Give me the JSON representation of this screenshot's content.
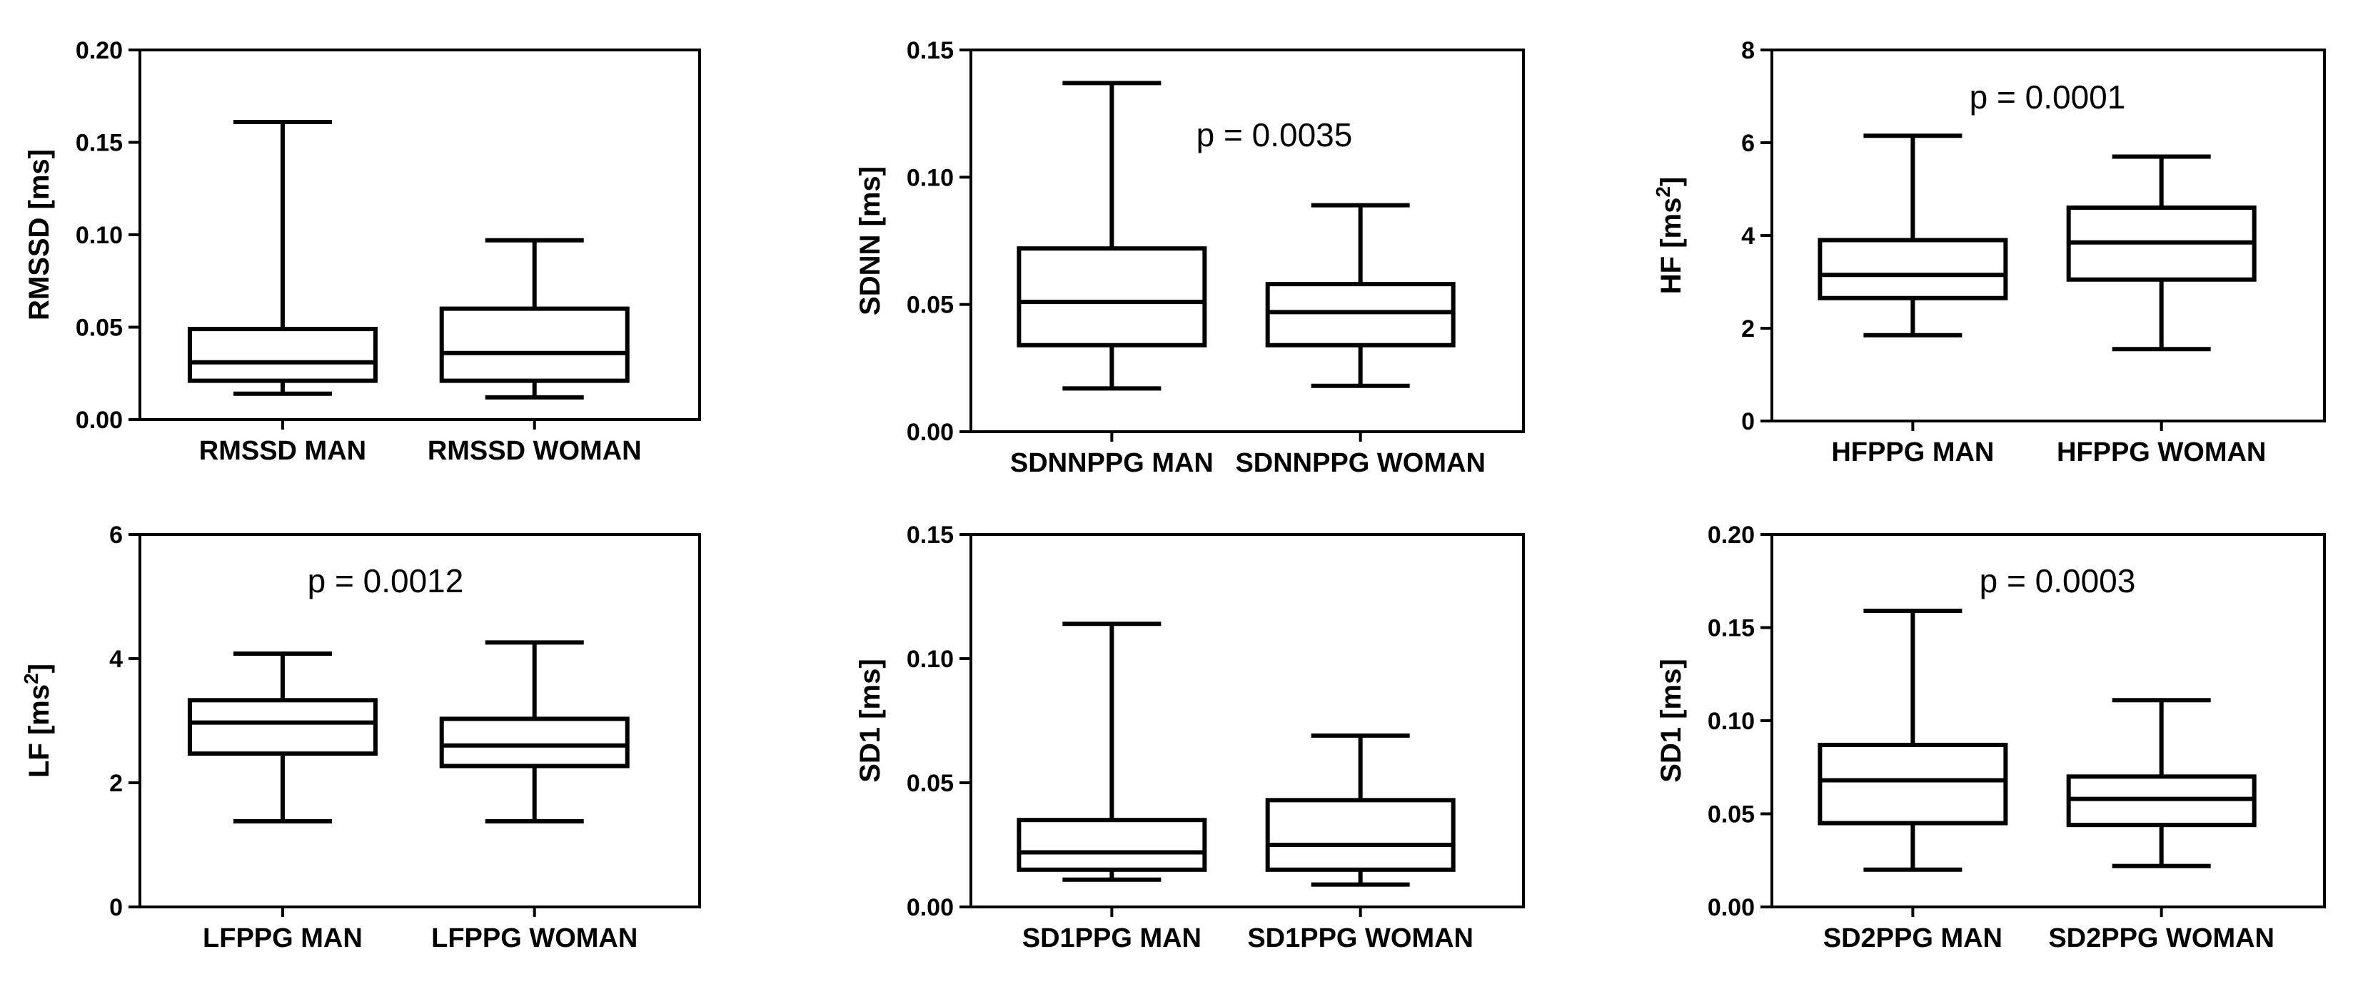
{
  "chart_data": [
    {
      "type": "boxplot",
      "ylabel": "RMSSD [ms]",
      "ylim": [
        0,
        0.2
      ],
      "yticks": [
        "0.00",
        "0.05",
        "0.10",
        "0.15",
        "0.20"
      ],
      "annotation": "",
      "boxes": [
        {
          "label": "RMSSD MAN",
          "min": 0.014,
          "q1": 0.021,
          "median": 0.031,
          "q3": 0.049,
          "max": 0.161
        },
        {
          "label": "RMSSD WOMAN",
          "min": 0.012,
          "q1": 0.021,
          "median": 0.036,
          "q3": 0.06,
          "max": 0.097
        }
      ]
    },
    {
      "type": "boxplot",
      "ylabel": "SDNN [ms]",
      "ylim": [
        0,
        0.15
      ],
      "yticks": [
        "0.00",
        "0.05",
        "0.10",
        "0.15"
      ],
      "annotation": "p = 0.0035",
      "boxes": [
        {
          "label": "SDNNPPG MAN",
          "min": 0.017,
          "q1": 0.034,
          "median": 0.051,
          "q3": 0.072,
          "max": 0.137
        },
        {
          "label": "SDNNPPG WOMAN",
          "min": 0.018,
          "q1": 0.034,
          "median": 0.047,
          "q3": 0.058,
          "max": 0.089
        }
      ]
    },
    {
      "type": "boxplot",
      "ylabel": "HF [ms²]",
      "ylim": [
        0,
        8
      ],
      "yticks": [
        "0",
        "2",
        "4",
        "6",
        "8"
      ],
      "annotation": "p = 0.0001",
      "boxes": [
        {
          "label": "HFPPG MAN",
          "min": 1.85,
          "q1": 2.65,
          "median": 3.15,
          "q3": 3.9,
          "max": 6.15
        },
        {
          "label": "HFPPG WOMAN",
          "min": 1.55,
          "q1": 3.05,
          "median": 3.85,
          "q3": 4.6,
          "max": 5.7
        }
      ]
    },
    {
      "type": "boxplot",
      "ylabel": "LF [ms²]",
      "ylim": [
        0,
        6
      ],
      "yticks": [
        "0",
        "2",
        "4",
        "6"
      ],
      "annotation": "p = 0.0012",
      "boxes": [
        {
          "label": "LFPPG MAN",
          "min": 1.38,
          "q1": 2.47,
          "median": 2.97,
          "q3": 3.33,
          "max": 4.08
        },
        {
          "label": "LFPPG WOMAN",
          "min": 1.38,
          "q1": 2.27,
          "median": 2.6,
          "q3": 3.03,
          "max": 4.26
        }
      ]
    },
    {
      "type": "boxplot",
      "ylabel": "SD1 [ms]",
      "ylim": [
        0,
        0.15
      ],
      "yticks": [
        "0.00",
        "0.05",
        "0.10",
        "0.15"
      ],
      "annotation": "",
      "boxes": [
        {
          "label": "SD1PPG MAN",
          "min": 0.011,
          "q1": 0.015,
          "median": 0.022,
          "q3": 0.035,
          "max": 0.114
        },
        {
          "label": "SD1PPG WOMAN",
          "min": 0.009,
          "q1": 0.015,
          "median": 0.025,
          "q3": 0.043,
          "max": 0.069
        }
      ]
    },
    {
      "type": "boxplot",
      "ylabel": "SD1 [ms]",
      "ylim": [
        0,
        0.2
      ],
      "yticks": [
        "0.00",
        "0.05",
        "0.10",
        "0.15",
        "0.20"
      ],
      "annotation": "p = 0.0003",
      "boxes": [
        {
          "label": "SD2PPG MAN",
          "min": 0.02,
          "q1": 0.045,
          "median": 0.068,
          "q3": 0.087,
          "max": 0.159
        },
        {
          "label": "SD2PPG WOMAN",
          "min": 0.022,
          "q1": 0.044,
          "median": 0.058,
          "q3": 0.07,
          "max": 0.111
        }
      ]
    }
  ]
}
